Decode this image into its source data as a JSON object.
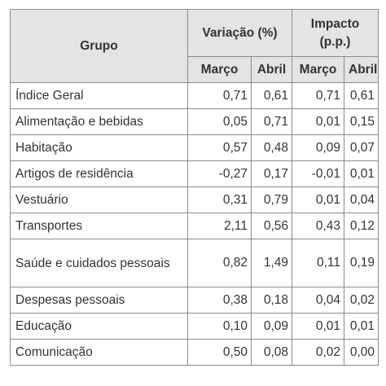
{
  "table": {
    "header": {
      "group": "Grupo",
      "variation": "Variação (%)",
      "impact_line1": "Impacto",
      "impact_line2": "(p.p.)",
      "march": "Março",
      "april": "Abril"
    },
    "rows": [
      {
        "group": "Índice Geral",
        "var_march": "0,71",
        "var_april": "0,61",
        "imp_march": "0,71",
        "imp_april": "0,61"
      },
      {
        "group": "Alimentação e bebidas",
        "var_march": "0,05",
        "var_april": "0,71",
        "imp_march": "0,01",
        "imp_april": "0,15"
      },
      {
        "group": "Habitação",
        "var_march": "0,57",
        "var_april": "0,48",
        "imp_march": "0,09",
        "imp_april": "0,07"
      },
      {
        "group": "Artigos de residência",
        "var_march": "-0,27",
        "var_april": "0,17",
        "imp_march": "-0,01",
        "imp_april": "0,01"
      },
      {
        "group": "Vestuário",
        "var_march": "0,31",
        "var_april": "0,79",
        "imp_march": "0,01",
        "imp_april": "0,04"
      },
      {
        "group": "Transportes",
        "var_march": "2,11",
        "var_april": "0,56",
        "imp_march": "0,43",
        "imp_april": "0,12"
      },
      {
        "group": "Saúde e cuidados pessoais",
        "var_march": "0,82",
        "var_april": "1,49",
        "imp_march": "0,11",
        "imp_april": "0,19"
      },
      {
        "group": "Despesas pessoais",
        "var_march": "0,38",
        "var_april": "0,18",
        "imp_march": "0,04",
        "imp_april": "0,02"
      },
      {
        "group": "Educação",
        "var_march": "0,10",
        "var_april": "0,09",
        "imp_march": "0,01",
        "imp_april": "0,01"
      },
      {
        "group": "Comunicação",
        "var_march": "0,50",
        "var_april": "0,08",
        "imp_march": "0,02",
        "imp_april": "0,00"
      }
    ]
  }
}
